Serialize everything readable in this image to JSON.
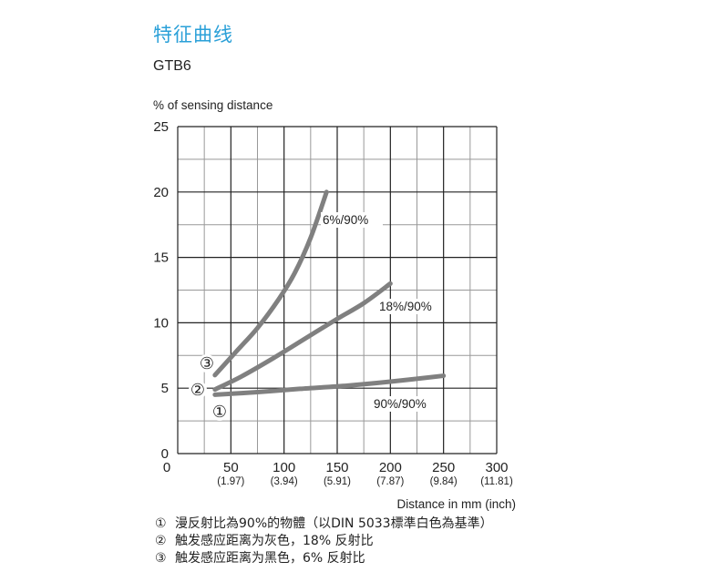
{
  "header": {
    "title": "特征曲线",
    "subtitle": "GTB6"
  },
  "chart_data": {
    "type": "line",
    "title": "特征曲线",
    "subtitle": "GTB6",
    "ylabel": "% of sensing distance",
    "xlabel": "Distance in mm (inch)",
    "xlim": [
      0,
      300
    ],
    "ylim": [
      0,
      25
    ],
    "grid": true,
    "x_ticks": [
      0,
      50,
      100,
      150,
      200,
      250,
      300
    ],
    "x_tick_labels": [
      "0",
      "50",
      "100",
      "150",
      "200",
      "250",
      "300"
    ],
    "x_tick_sublabels": [
      "",
      "(1.97)",
      "(3.94)",
      "(5.91)",
      "(7.87)",
      "(9.84)",
      "(11.81)"
    ],
    "y_ticks": [
      0,
      5,
      10,
      15,
      20,
      25
    ],
    "y_tick_labels": [
      "0",
      "5",
      "10",
      "15",
      "20",
      "25"
    ],
    "series": [
      {
        "name": "90%/90%",
        "marker": "①",
        "color": "#808080",
        "x": [
          35,
          75,
          115,
          160,
          200,
          250
        ],
        "y": [
          4.5,
          4.7,
          4.95,
          5.2,
          5.5,
          5.95
        ]
      },
      {
        "name": "18%/90%",
        "marker": "②",
        "color": "#808080",
        "x": [
          35,
          60,
          90,
          120,
          150,
          175,
          200
        ],
        "y": [
          4.9,
          5.9,
          7.3,
          8.8,
          10.3,
          11.5,
          13.0
        ]
      },
      {
        "name": "6%/90%",
        "marker": "③",
        "color": "#808080",
        "x": [
          35,
          55,
          75,
          95,
          110,
          125,
          140
        ],
        "y": [
          6.0,
          7.8,
          9.6,
          11.8,
          13.8,
          16.5,
          20.0
        ]
      }
    ]
  },
  "legend": [
    {
      "mark": "①",
      "text": "漫反射比為90%的物體（以DIN 5033標準白色為基準）"
    },
    {
      "mark": "②",
      "text": "触发感应距离为灰色，18% 反射比"
    },
    {
      "mark": "③",
      "text": "触发感应距离为黑色，6% 反射比"
    }
  ]
}
